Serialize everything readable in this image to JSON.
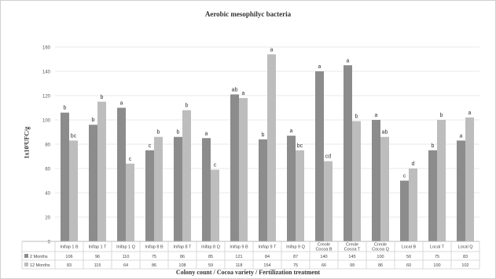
{
  "chart_data": {
    "type": "bar",
    "title": "Aerobic mesophilyc bacteria",
    "xlabel": "Colony count / Cocoa variety / Fertilization treatment",
    "ylabel": "1x10³UFC/g",
    "ylim": [
      0,
      160
    ],
    "yticks": [
      0,
      20,
      40,
      60,
      80,
      100,
      120,
      140,
      160
    ],
    "grid": true,
    "legend": "data-table",
    "categories": [
      "Inifap 1 B",
      "Inifap 1 T",
      "Inifap 1 Q",
      "Inifap 8 B",
      "Inifap 8 T",
      "Inifap 8 Q",
      "Inifap 9 B",
      "Inifap 9 T",
      "Inifap 9 Q",
      "Creole Cocoa B",
      "Creole Cocoa T",
      "Creole Cocoa Q",
      "Local B",
      "Local T",
      "Local Q"
    ],
    "series": [
      {
        "name": "2 Months",
        "color": "#8c8c8c",
        "values": [
          106,
          96,
          110,
          75,
          86,
          85,
          121,
          84,
          87,
          140,
          145,
          100,
          50,
          75,
          83
        ],
        "letters": [
          "b",
          "b",
          "a",
          "c",
          "b",
          "a",
          "ab",
          "b",
          "a",
          "a",
          "a",
          "a",
          "c",
          "b",
          "a"
        ]
      },
      {
        "name": "12 Months",
        "color": "#bdbdbd",
        "values": [
          83,
          115,
          64,
          86,
          108,
          59,
          118,
          154,
          75,
          66,
          99,
          86,
          60,
          100,
          102
        ],
        "letters": [
          "bc",
          "b",
          "c",
          "b",
          "b",
          "c",
          "a",
          "a",
          "bc",
          "cd",
          "b",
          "ab",
          "d",
          "b",
          "a"
        ]
      }
    ]
  }
}
